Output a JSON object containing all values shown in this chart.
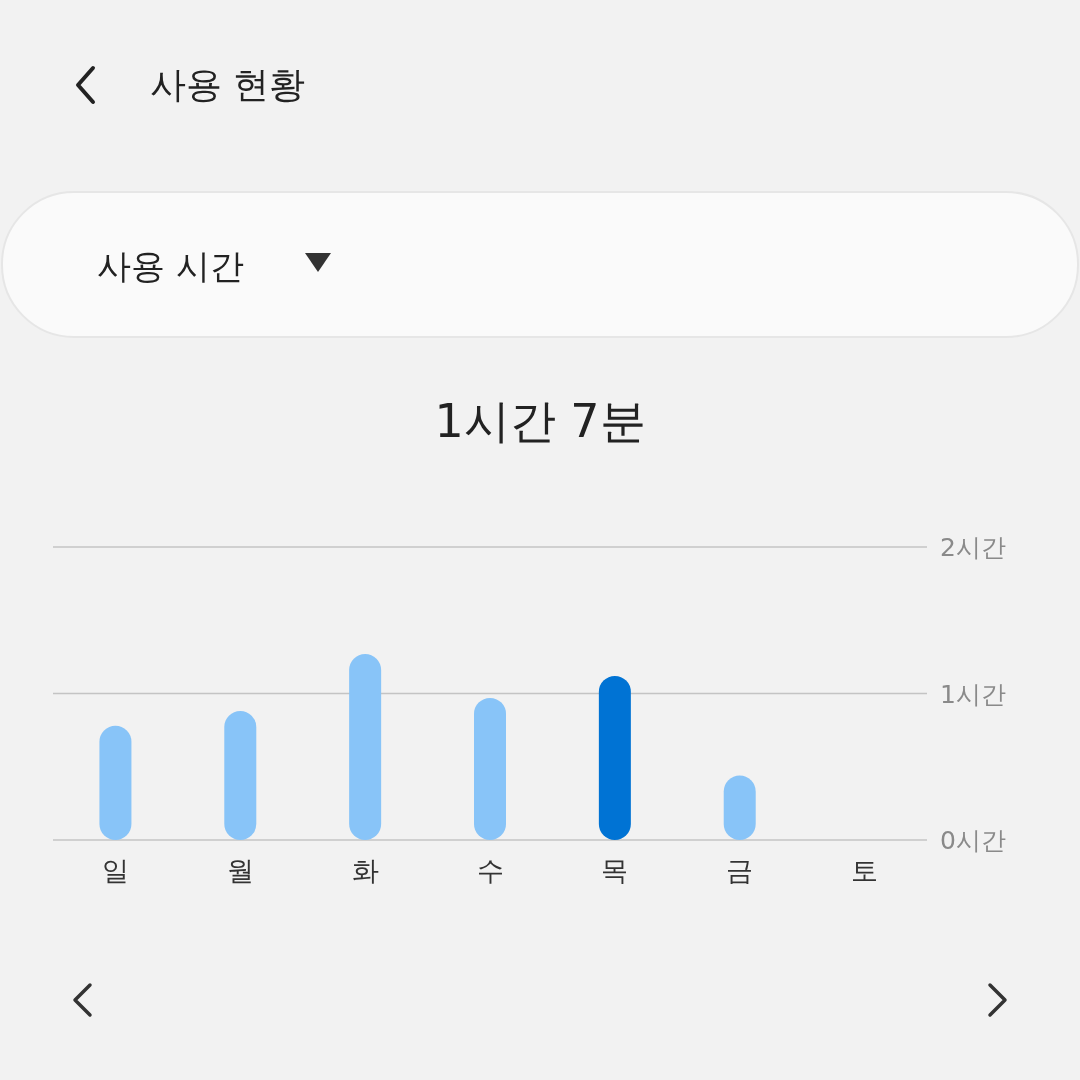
{
  "chart_data": {
    "type": "bar",
    "title": "사용 현황",
    "subtitle": "사용 시간",
    "annotations": [
      "1시간 7분"
    ],
    "categories": [
      "일",
      "월",
      "화",
      "수",
      "목",
      "금",
      "토"
    ],
    "values": [
      0.78,
      0.88,
      1.27,
      0.97,
      1.12,
      0.44,
      null
    ],
    "colors": [
      "#88c4f8",
      "#88c4f8",
      "#88c4f8",
      "#88c4f8",
      "#0073d4",
      "#88c4f8",
      null
    ],
    "ylim": [
      0,
      2
    ],
    "yticks": [
      {
        "value": 0,
        "label": "0시간"
      },
      {
        "value": 1,
        "label": "1시간"
      },
      {
        "value": 2,
        "label": "2시간"
      }
    ],
    "grid": "y"
  }
}
